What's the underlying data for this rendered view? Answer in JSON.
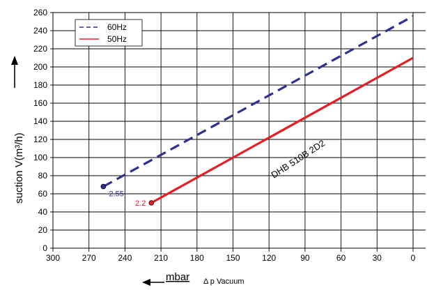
{
  "chart_data": {
    "type": "line",
    "xlim": [
      300,
      0
    ],
    "ylim": [
      0,
      260
    ],
    "x_ticks": [
      300,
      270,
      240,
      210,
      180,
      150,
      120,
      90,
      60,
      30,
      0
    ],
    "y_ticks": [
      0,
      20,
      40,
      60,
      80,
      100,
      120,
      140,
      160,
      180,
      200,
      220,
      240,
      260
    ],
    "grid": true,
    "legend_position": "top-left",
    "ylabel": "suction V(m³/h)",
    "xlabel_unit": "mbar",
    "xlabel_text": "Δ p  Vacuum",
    "annotation": "DHB 510B 2D2",
    "series": [
      {
        "name": "60Hz",
        "color": "#2e3192",
        "style": "dashed",
        "points": [
          [
            258,
            68
          ],
          [
            0,
            256
          ]
        ],
        "start_label": "2.55"
      },
      {
        "name": "50Hz",
        "color": "#e31e24",
        "style": "solid",
        "points": [
          [
            218,
            50
          ],
          [
            0,
            210
          ]
        ],
        "start_label": "2.2"
      }
    ]
  }
}
